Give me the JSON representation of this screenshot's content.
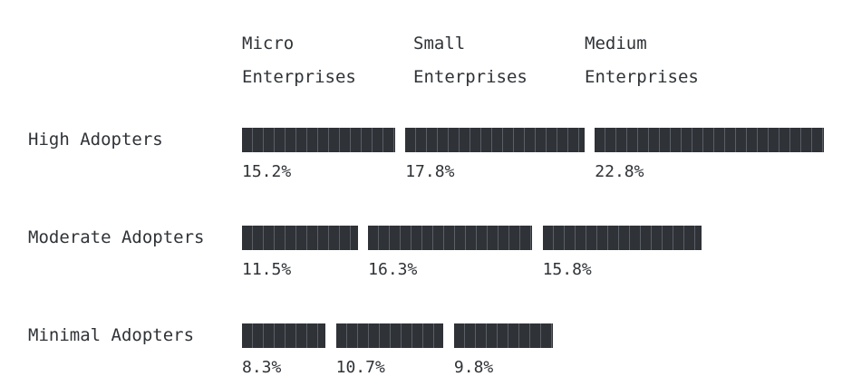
{
  "chart_data": {
    "type": "bar",
    "orientation": "horizontal-grouped",
    "columns": [
      "Micro\nEnterprises",
      "Small\nEnterprises",
      "Medium\nEnterprises"
    ],
    "rows": [
      {
        "label": "High Adopters",
        "values": [
          15.2,
          17.8,
          22.8
        ],
        "value_labels": [
          "15.2%",
          "17.8%",
          "22.8%"
        ]
      },
      {
        "label": "Moderate Adopters",
        "values": [
          11.5,
          16.3,
          15.8
        ],
        "value_labels": [
          "11.5%",
          "16.3%",
          "15.8%"
        ]
      },
      {
        "label": "Minimal Adopters",
        "values": [
          8.3,
          10.7,
          9.8
        ],
        "value_labels": [
          "8.3%",
          "10.7%",
          "9.8%"
        ]
      }
    ],
    "unit": "%",
    "bar_color": "#2f3237",
    "grid": false
  }
}
